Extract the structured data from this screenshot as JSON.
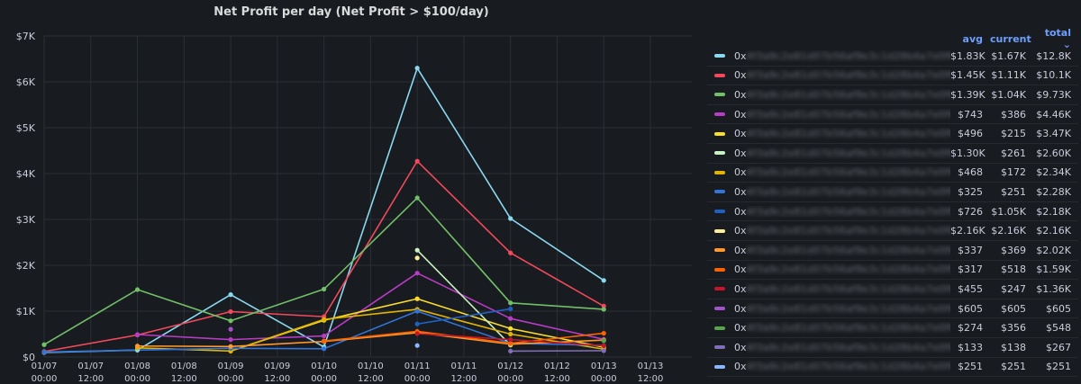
{
  "panel": {
    "title": "Net Profit per day (Net Profit > $100/day)"
  },
  "legend": {
    "columns": {
      "avg": "avg",
      "current": "current",
      "total": "total ⌄"
    }
  },
  "chart_data": {
    "type": "line",
    "title": "Net Profit per day (Net Profit > $100/day)",
    "x": [
      "01/07 00:00",
      "01/08 00:00",
      "01/09 00:00",
      "01/10 00:00",
      "01/11 00:00",
      "01/12 00:00",
      "01/13 00:00"
    ],
    "xticks": [
      [
        "01/07",
        "00:00"
      ],
      [
        "01/07",
        "12:00"
      ],
      [
        "01/08",
        "00:00"
      ],
      [
        "01/08",
        "12:00"
      ],
      [
        "01/09",
        "00:00"
      ],
      [
        "01/09",
        "12:00"
      ],
      [
        "01/10",
        "00:00"
      ],
      [
        "01/10",
        "12:00"
      ],
      [
        "01/11",
        "00:00"
      ],
      [
        "01/11",
        "12:00"
      ],
      [
        "01/12",
        "00:00"
      ],
      [
        "01/12",
        "12:00"
      ],
      [
        "01/13",
        "00:00"
      ],
      [
        "01/13",
        "12:00"
      ]
    ],
    "yticks": [
      "$0",
      "$1K",
      "$2K",
      "$3K",
      "$4K",
      "$5K",
      "$6K",
      "$7K"
    ],
    "ylim": [
      0,
      7000
    ],
    "grid": true,
    "legend_placement": "right",
    "series": [
      {
        "name": "0x",
        "color": "#8ad9f0",
        "avg": "$1.83K",
        "current": "$1.67K",
        "total": "$12.8K",
        "values": [
          100,
          150,
          1360,
          220,
          6300,
          3020,
          1670
        ]
      },
      {
        "name": "0x",
        "color": "#f2495c",
        "avg": "$1.45K",
        "current": "$1.11K",
        "total": "$10.1K",
        "values": [
          120,
          480,
          990,
          880,
          4270,
          2270,
          1110
        ]
      },
      {
        "name": "0x",
        "color": "#73bf69",
        "avg": "$1.39K",
        "current": "$1.04K",
        "total": "$9.73K",
        "values": [
          270,
          1470,
          790,
          1480,
          3470,
          1180,
          1040
        ]
      },
      {
        "name": "0x",
        "color": "#b83cc6",
        "avg": "$743",
        "current": "$386",
        "total": "$4.46K",
        "values": [
          null,
          490,
          380,
          460,
          1830,
          840,
          386
        ]
      },
      {
        "name": "0x",
        "color": "#fade2a",
        "avg": "$496",
        "current": "$215",
        "total": "$3.47K",
        "values": [
          null,
          null,
          130,
          800,
          1270,
          620,
          215
        ]
      },
      {
        "name": "0x",
        "color": "#c8f2c2",
        "avg": "$1.30K",
        "current": "$261",
        "total": "$2.60K",
        "values": [
          null,
          null,
          null,
          null,
          2330,
          261,
          null
        ]
      },
      {
        "name": "0x",
        "color": "#e0b400",
        "avg": "$468",
        "current": "$172",
        "total": "$2.34K",
        "values": [
          null,
          200,
          130,
          820,
          1040,
          500,
          172
        ]
      },
      {
        "name": "0x",
        "color": "#3274d9",
        "avg": "$325",
        "current": "$251",
        "total": "$2.28K",
        "values": [
          110,
          null,
          190,
          180,
          1000,
          300,
          251
        ]
      },
      {
        "name": "0x",
        "color": "#1f60c4",
        "avg": "$726",
        "current": "$1.05K",
        "total": "$2.18K",
        "values": [
          null,
          null,
          null,
          null,
          720,
          1050,
          null
        ]
      },
      {
        "name": "0x",
        "color": "#ffee99",
        "avg": "$2.16K",
        "current": "$2.16K",
        "total": "$2.16K",
        "values": [
          null,
          null,
          null,
          null,
          2160,
          null,
          null
        ]
      },
      {
        "name": "0x",
        "color": "#ff9830",
        "avg": "$337",
        "current": "$369",
        "total": "$2.02K",
        "values": [
          null,
          240,
          230,
          340,
          530,
          280,
          369
        ]
      },
      {
        "name": "0x",
        "color": "#fa6400",
        "avg": "$317",
        "current": "$518",
        "total": "$1.59K",
        "values": [
          null,
          null,
          null,
          350,
          560,
          300,
          518
        ]
      },
      {
        "name": "0x",
        "color": "#c4162a",
        "avg": "$455",
        "current": "$247",
        "total": "$1.36K",
        "values": [
          null,
          null,
          null,
          null,
          510,
          380,
          247
        ]
      },
      {
        "name": "0x",
        "color": "#a352cc",
        "avg": "$605",
        "current": "$605",
        "total": "$605",
        "values": [
          null,
          null,
          605,
          null,
          null,
          null,
          null
        ]
      },
      {
        "name": "0x",
        "color": "#56a64b",
        "avg": "$274",
        "current": "$356",
        "total": "$548",
        "values": [
          null,
          null,
          null,
          null,
          null,
          null,
          356
        ]
      },
      {
        "name": "0x",
        "color": "#806eb7",
        "avg": "$133",
        "current": "$138",
        "total": "$267",
        "values": [
          null,
          null,
          null,
          null,
          null,
          129,
          138
        ]
      },
      {
        "name": "0x",
        "color": "#8ab8ff",
        "avg": "$251",
        "current": "$251",
        "total": "$251",
        "values": [
          null,
          null,
          null,
          null,
          251,
          null,
          null
        ]
      }
    ]
  }
}
